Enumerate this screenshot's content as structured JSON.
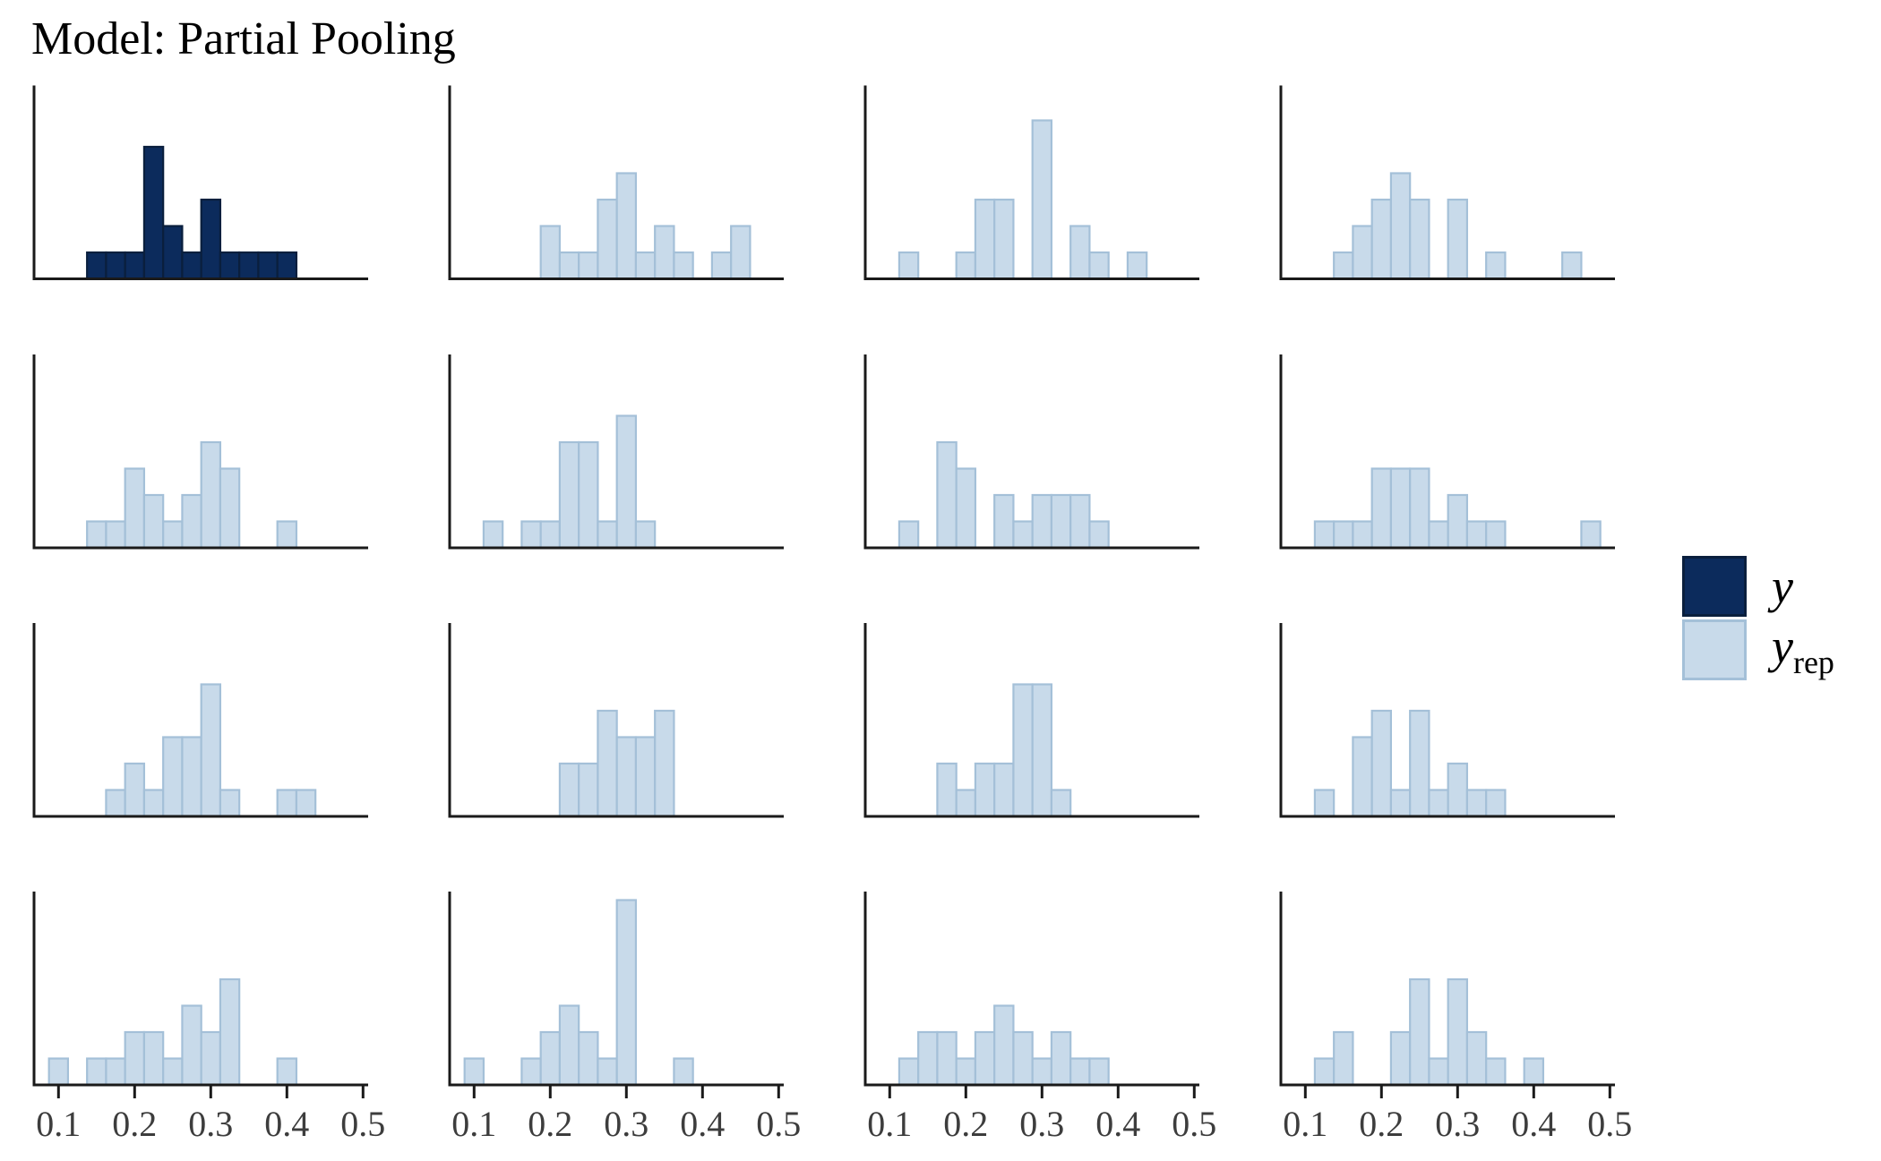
{
  "title": "Model: Partial Pooling",
  "legend": {
    "items": [
      {
        "label": "y",
        "sub": "",
        "fill": "#0c2b5c",
        "border": "#0a1f3d"
      },
      {
        "label": "y",
        "sub": "rep",
        "fill": "#c8daea",
        "border": "#a4c0d8"
      }
    ]
  },
  "axis": {
    "ticks": [
      0.1,
      0.2,
      0.3,
      0.4,
      0.5
    ],
    "tick_labels": [
      "0.1",
      "0.2",
      "0.3",
      "0.4",
      "0.5"
    ],
    "label_color": "#3d3d3d",
    "line_color": "#1a1a1a"
  },
  "colors": {
    "y_fill": "#0c2b5c",
    "y_stroke": "#0a1f3d",
    "yrep_fill": "#c8daea",
    "yrep_stroke": "#a4c0d8"
  },
  "chart_data": {
    "type": "bar",
    "subtype": "histogram_grid",
    "title": "Model: Partial Pooling",
    "grid": {
      "rows": 4,
      "cols": 4
    },
    "bin_width": 0.025,
    "n_per_panel": 18,
    "x_ticks": [
      0.1,
      0.2,
      0.3,
      0.4,
      0.5
    ],
    "x_range": [
      0.065,
      0.5
    ],
    "y_range": [
      0,
      7.3
    ],
    "gridlines": false,
    "legend_position": "right",
    "note": "bars given as [bin_center, count]; bin width 0.025",
    "panels": [
      {
        "row": 0,
        "col": 0,
        "series": "y",
        "bars": [
          [
            0.15,
            1
          ],
          [
            0.175,
            1
          ],
          [
            0.2,
            1
          ],
          [
            0.225,
            5
          ],
          [
            0.25,
            2
          ],
          [
            0.275,
            1
          ],
          [
            0.3,
            3
          ],
          [
            0.325,
            1
          ],
          [
            0.35,
            1
          ],
          [
            0.375,
            1
          ],
          [
            0.4,
            1
          ]
        ]
      },
      {
        "row": 0,
        "col": 1,
        "series": "y_rep",
        "bars": [
          [
            0.2,
            2
          ],
          [
            0.225,
            1
          ],
          [
            0.25,
            1
          ],
          [
            0.275,
            3
          ],
          [
            0.3,
            4
          ],
          [
            0.325,
            1
          ],
          [
            0.35,
            2
          ],
          [
            0.375,
            1
          ],
          [
            0.425,
            1
          ],
          [
            0.45,
            2
          ]
        ]
      },
      {
        "row": 0,
        "col": 2,
        "series": "y_rep",
        "bars": [
          [
            0.125,
            1
          ],
          [
            0.2,
            1
          ],
          [
            0.225,
            3
          ],
          [
            0.25,
            3
          ],
          [
            0.3,
            6
          ],
          [
            0.35,
            2
          ],
          [
            0.375,
            1
          ],
          [
            0.425,
            1
          ]
        ]
      },
      {
        "row": 0,
        "col": 3,
        "series": "y_rep",
        "bars": [
          [
            0.15,
            1
          ],
          [
            0.175,
            2
          ],
          [
            0.2,
            3
          ],
          [
            0.225,
            4
          ],
          [
            0.25,
            3
          ],
          [
            0.3,
            3
          ],
          [
            0.35,
            1
          ],
          [
            0.45,
            1
          ]
        ]
      },
      {
        "row": 1,
        "col": 0,
        "series": "y_rep",
        "bars": [
          [
            0.15,
            1
          ],
          [
            0.175,
            1
          ],
          [
            0.2,
            3
          ],
          [
            0.225,
            2
          ],
          [
            0.25,
            1
          ],
          [
            0.275,
            2
          ],
          [
            0.3,
            4
          ],
          [
            0.325,
            3
          ],
          [
            0.4,
            1
          ]
        ]
      },
      {
        "row": 1,
        "col": 1,
        "series": "y_rep",
        "bars": [
          [
            0.125,
            1
          ],
          [
            0.175,
            1
          ],
          [
            0.2,
            1
          ],
          [
            0.225,
            4
          ],
          [
            0.25,
            4
          ],
          [
            0.275,
            1
          ],
          [
            0.3,
            5
          ],
          [
            0.325,
            1
          ]
        ]
      },
      {
        "row": 1,
        "col": 2,
        "series": "y_rep",
        "bars": [
          [
            0.125,
            1
          ],
          [
            0.175,
            4
          ],
          [
            0.2,
            3
          ],
          [
            0.25,
            2
          ],
          [
            0.275,
            1
          ],
          [
            0.3,
            2
          ],
          [
            0.325,
            2
          ],
          [
            0.35,
            2
          ],
          [
            0.375,
            1
          ]
        ]
      },
      {
        "row": 1,
        "col": 3,
        "series": "y_rep",
        "bars": [
          [
            0.125,
            1
          ],
          [
            0.15,
            1
          ],
          [
            0.175,
            1
          ],
          [
            0.2,
            3
          ],
          [
            0.225,
            3
          ],
          [
            0.25,
            3
          ],
          [
            0.275,
            1
          ],
          [
            0.3,
            2
          ],
          [
            0.325,
            1
          ],
          [
            0.35,
            1
          ],
          [
            0.475,
            1
          ]
        ]
      },
      {
        "row": 2,
        "col": 0,
        "series": "y_rep",
        "bars": [
          [
            0.175,
            1
          ],
          [
            0.2,
            2
          ],
          [
            0.225,
            1
          ],
          [
            0.25,
            3
          ],
          [
            0.275,
            3
          ],
          [
            0.3,
            5
          ],
          [
            0.325,
            1
          ],
          [
            0.4,
            1
          ],
          [
            0.425,
            1
          ]
        ]
      },
      {
        "row": 2,
        "col": 1,
        "series": "y_rep",
        "bars": [
          [
            0.225,
            2
          ],
          [
            0.25,
            2
          ],
          [
            0.275,
            4
          ],
          [
            0.3,
            3
          ],
          [
            0.325,
            3
          ],
          [
            0.35,
            4
          ]
        ]
      },
      {
        "row": 2,
        "col": 2,
        "series": "y_rep",
        "bars": [
          [
            0.175,
            2
          ],
          [
            0.2,
            1
          ],
          [
            0.225,
            2
          ],
          [
            0.25,
            2
          ],
          [
            0.275,
            5
          ],
          [
            0.3,
            5
          ],
          [
            0.325,
            1
          ]
        ]
      },
      {
        "row": 2,
        "col": 3,
        "series": "y_rep",
        "bars": [
          [
            0.125,
            1
          ],
          [
            0.175,
            3
          ],
          [
            0.2,
            4
          ],
          [
            0.225,
            1
          ],
          [
            0.25,
            4
          ],
          [
            0.275,
            1
          ],
          [
            0.3,
            2
          ],
          [
            0.325,
            1
          ],
          [
            0.35,
            1
          ]
        ]
      },
      {
        "row": 3,
        "col": 0,
        "series": "y_rep",
        "bars": [
          [
            0.1,
            1
          ],
          [
            0.15,
            1
          ],
          [
            0.175,
            1
          ],
          [
            0.2,
            2
          ],
          [
            0.225,
            2
          ],
          [
            0.25,
            1
          ],
          [
            0.275,
            3
          ],
          [
            0.3,
            2
          ],
          [
            0.325,
            4
          ],
          [
            0.4,
            1
          ]
        ]
      },
      {
        "row": 3,
        "col": 1,
        "series": "y_rep",
        "bars": [
          [
            0.1,
            1
          ],
          [
            0.175,
            1
          ],
          [
            0.2,
            2
          ],
          [
            0.225,
            3
          ],
          [
            0.25,
            2
          ],
          [
            0.275,
            1
          ],
          [
            0.3,
            7
          ],
          [
            0.375,
            1
          ]
        ]
      },
      {
        "row": 3,
        "col": 2,
        "series": "y_rep",
        "bars": [
          [
            0.125,
            1
          ],
          [
            0.15,
            2
          ],
          [
            0.175,
            2
          ],
          [
            0.2,
            1
          ],
          [
            0.225,
            2
          ],
          [
            0.25,
            3
          ],
          [
            0.275,
            2
          ],
          [
            0.3,
            1
          ],
          [
            0.325,
            2
          ],
          [
            0.35,
            1
          ],
          [
            0.375,
            1
          ]
        ]
      },
      {
        "row": 3,
        "col": 3,
        "series": "y_rep",
        "bars": [
          [
            0.125,
            1
          ],
          [
            0.15,
            2
          ],
          [
            0.225,
            2
          ],
          [
            0.25,
            4
          ],
          [
            0.275,
            1
          ],
          [
            0.3,
            4
          ],
          [
            0.325,
            2
          ],
          [
            0.35,
            1
          ],
          [
            0.4,
            1
          ]
        ]
      }
    ]
  }
}
